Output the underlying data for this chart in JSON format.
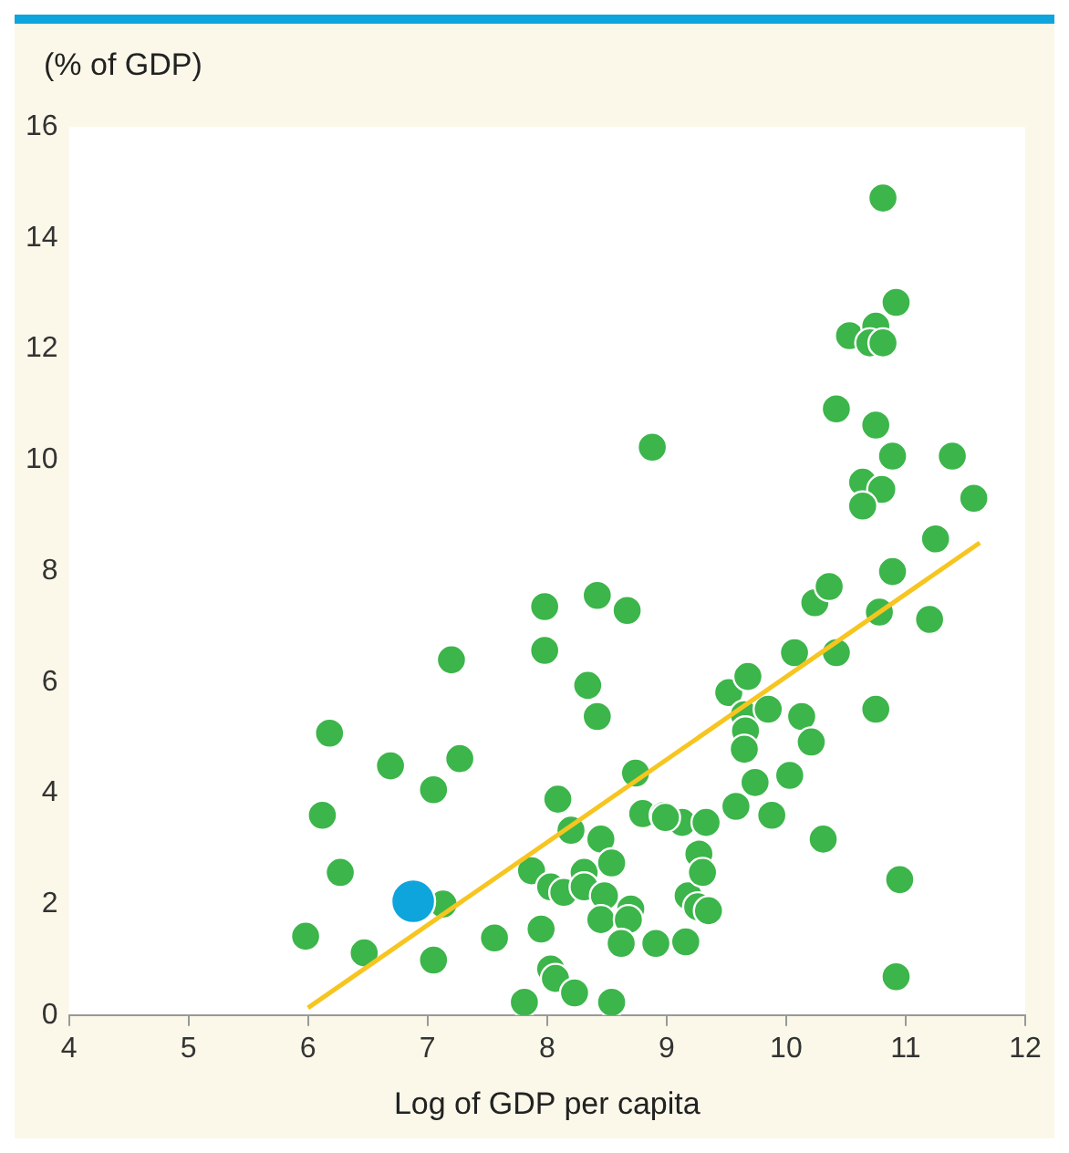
{
  "chart_data": {
    "type": "scatter",
    "ylabel": "(% of GDP)",
    "xlabel": "Log of GDP per capita",
    "marker": "circle",
    "xlim": [
      4,
      12
    ],
    "xticks": [
      4,
      5,
      6,
      7,
      8,
      9,
      10,
      11,
      12
    ],
    "ylim": [
      0,
      16
    ],
    "yticks": [
      0,
      2,
      4,
      6,
      8,
      10,
      12,
      14,
      16
    ],
    "series": [
      {
        "color": "#3cb54a",
        "x": [
          5.98,
          6.18,
          6.12,
          6.27,
          6.47,
          6.69,
          7.05,
          7.05,
          7.13,
          7.2,
          7.27,
          7.56,
          7.81,
          7.87,
          7.98,
          7.98,
          7.95,
          8.03,
          8.03,
          8.07,
          8.09,
          8.14,
          8.23,
          8.2,
          8.31,
          8.31,
          8.42,
          8.34,
          8.42,
          8.45,
          8.48,
          8.45,
          8.54,
          8.54,
          8.67,
          8.74,
          8.7,
          8.68,
          8.62,
          8.8,
          8.91,
          8.88,
          8.98,
          9.13,
          9.16,
          9.18,
          9.26,
          9.27,
          9.3,
          9.35,
          9.33,
          9.52,
          9.68,
          9.65,
          9.66,
          9.65,
          9.58,
          9.74,
          9.85,
          9.88,
          10.03,
          10.07,
          10.13,
          10.21,
          10.24,
          10.36,
          10.42,
          10.31,
          10.75,
          10.78,
          10.89,
          11.2,
          10.95,
          10.92,
          10.81,
          10.92,
          10.53,
          10.75,
          10.7,
          10.81,
          10.42,
          10.75,
          10.89,
          11.39,
          10.64,
          10.8,
          10.64,
          11.57,
          11.25,
          8.99
        ],
        "values": [
          1.42,
          5.08,
          3.6,
          2.57,
          1.12,
          4.49,
          4.06,
          0.99,
          2.0,
          6.4,
          4.62,
          1.39,
          0.23,
          2.6,
          7.36,
          6.57,
          1.55,
          2.31,
          0.83,
          0.66,
          3.89,
          2.21,
          0.4,
          3.33,
          2.57,
          2.31,
          7.56,
          5.94,
          5.38,
          3.17,
          2.15,
          1.72,
          2.74,
          0.23,
          7.29,
          4.36,
          1.91,
          1.72,
          1.29,
          3.63,
          1.29,
          10.23,
          3.6,
          3.47,
          1.32,
          2.15,
          1.95,
          2.9,
          2.57,
          1.88,
          3.47,
          5.81,
          6.1,
          5.41,
          5.12,
          4.79,
          3.76,
          4.19,
          5.51,
          3.6,
          4.32,
          6.53,
          5.38,
          4.92,
          7.43,
          7.72,
          6.53,
          3.17,
          5.51,
          7.26,
          7.99,
          7.13,
          2.44,
          0.69,
          14.72,
          12.84,
          12.24,
          12.41,
          12.11,
          12.11,
          10.92,
          10.63,
          10.07,
          10.07,
          9.6,
          9.47,
          9.17,
          9.31,
          8.58,
          3.56
        ]
      },
      {
        "color": "#0ea5dc",
        "x": [
          6.88
        ],
        "values": [
          2.05
        ]
      },
      {
        "type": "line",
        "color": "#f7c520",
        "marker": "none",
        "x": [
          6.0,
          11.62
        ],
        "values": [
          0.13,
          8.51
        ]
      }
    ]
  }
}
